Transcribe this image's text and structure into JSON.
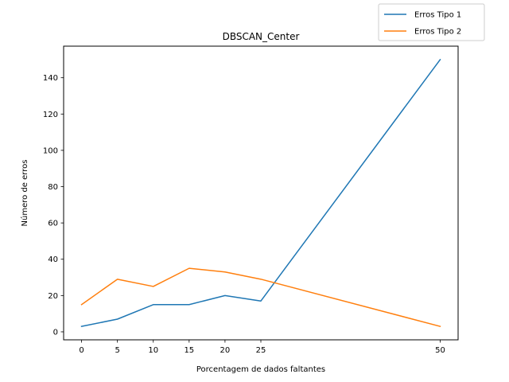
{
  "chart_data": {
    "type": "line",
    "title": "DBSCAN_Center",
    "xlabel": "Porcentagem de dados faltantes",
    "ylabel": "Número de erros",
    "x": [
      0,
      5,
      10,
      15,
      20,
      25,
      50
    ],
    "xticks": [
      0,
      5,
      10,
      15,
      20,
      25,
      50
    ],
    "yticks": [
      0,
      20,
      40,
      60,
      80,
      100,
      120,
      140
    ],
    "xlim": [
      -2.5,
      52.5
    ],
    "ylim": [
      -4.4,
      157.4
    ],
    "grid": false,
    "legend_position": "top-right",
    "series": [
      {
        "name": "Erros Tipo 1",
        "color": "#1f77b4",
        "values": [
          3,
          7,
          15,
          15,
          20,
          17,
          150
        ]
      },
      {
        "name": "Erros Tipo 2",
        "color": "#ff7f0e",
        "values": [
          15,
          29,
          25,
          35,
          33,
          29,
          3
        ]
      }
    ]
  }
}
